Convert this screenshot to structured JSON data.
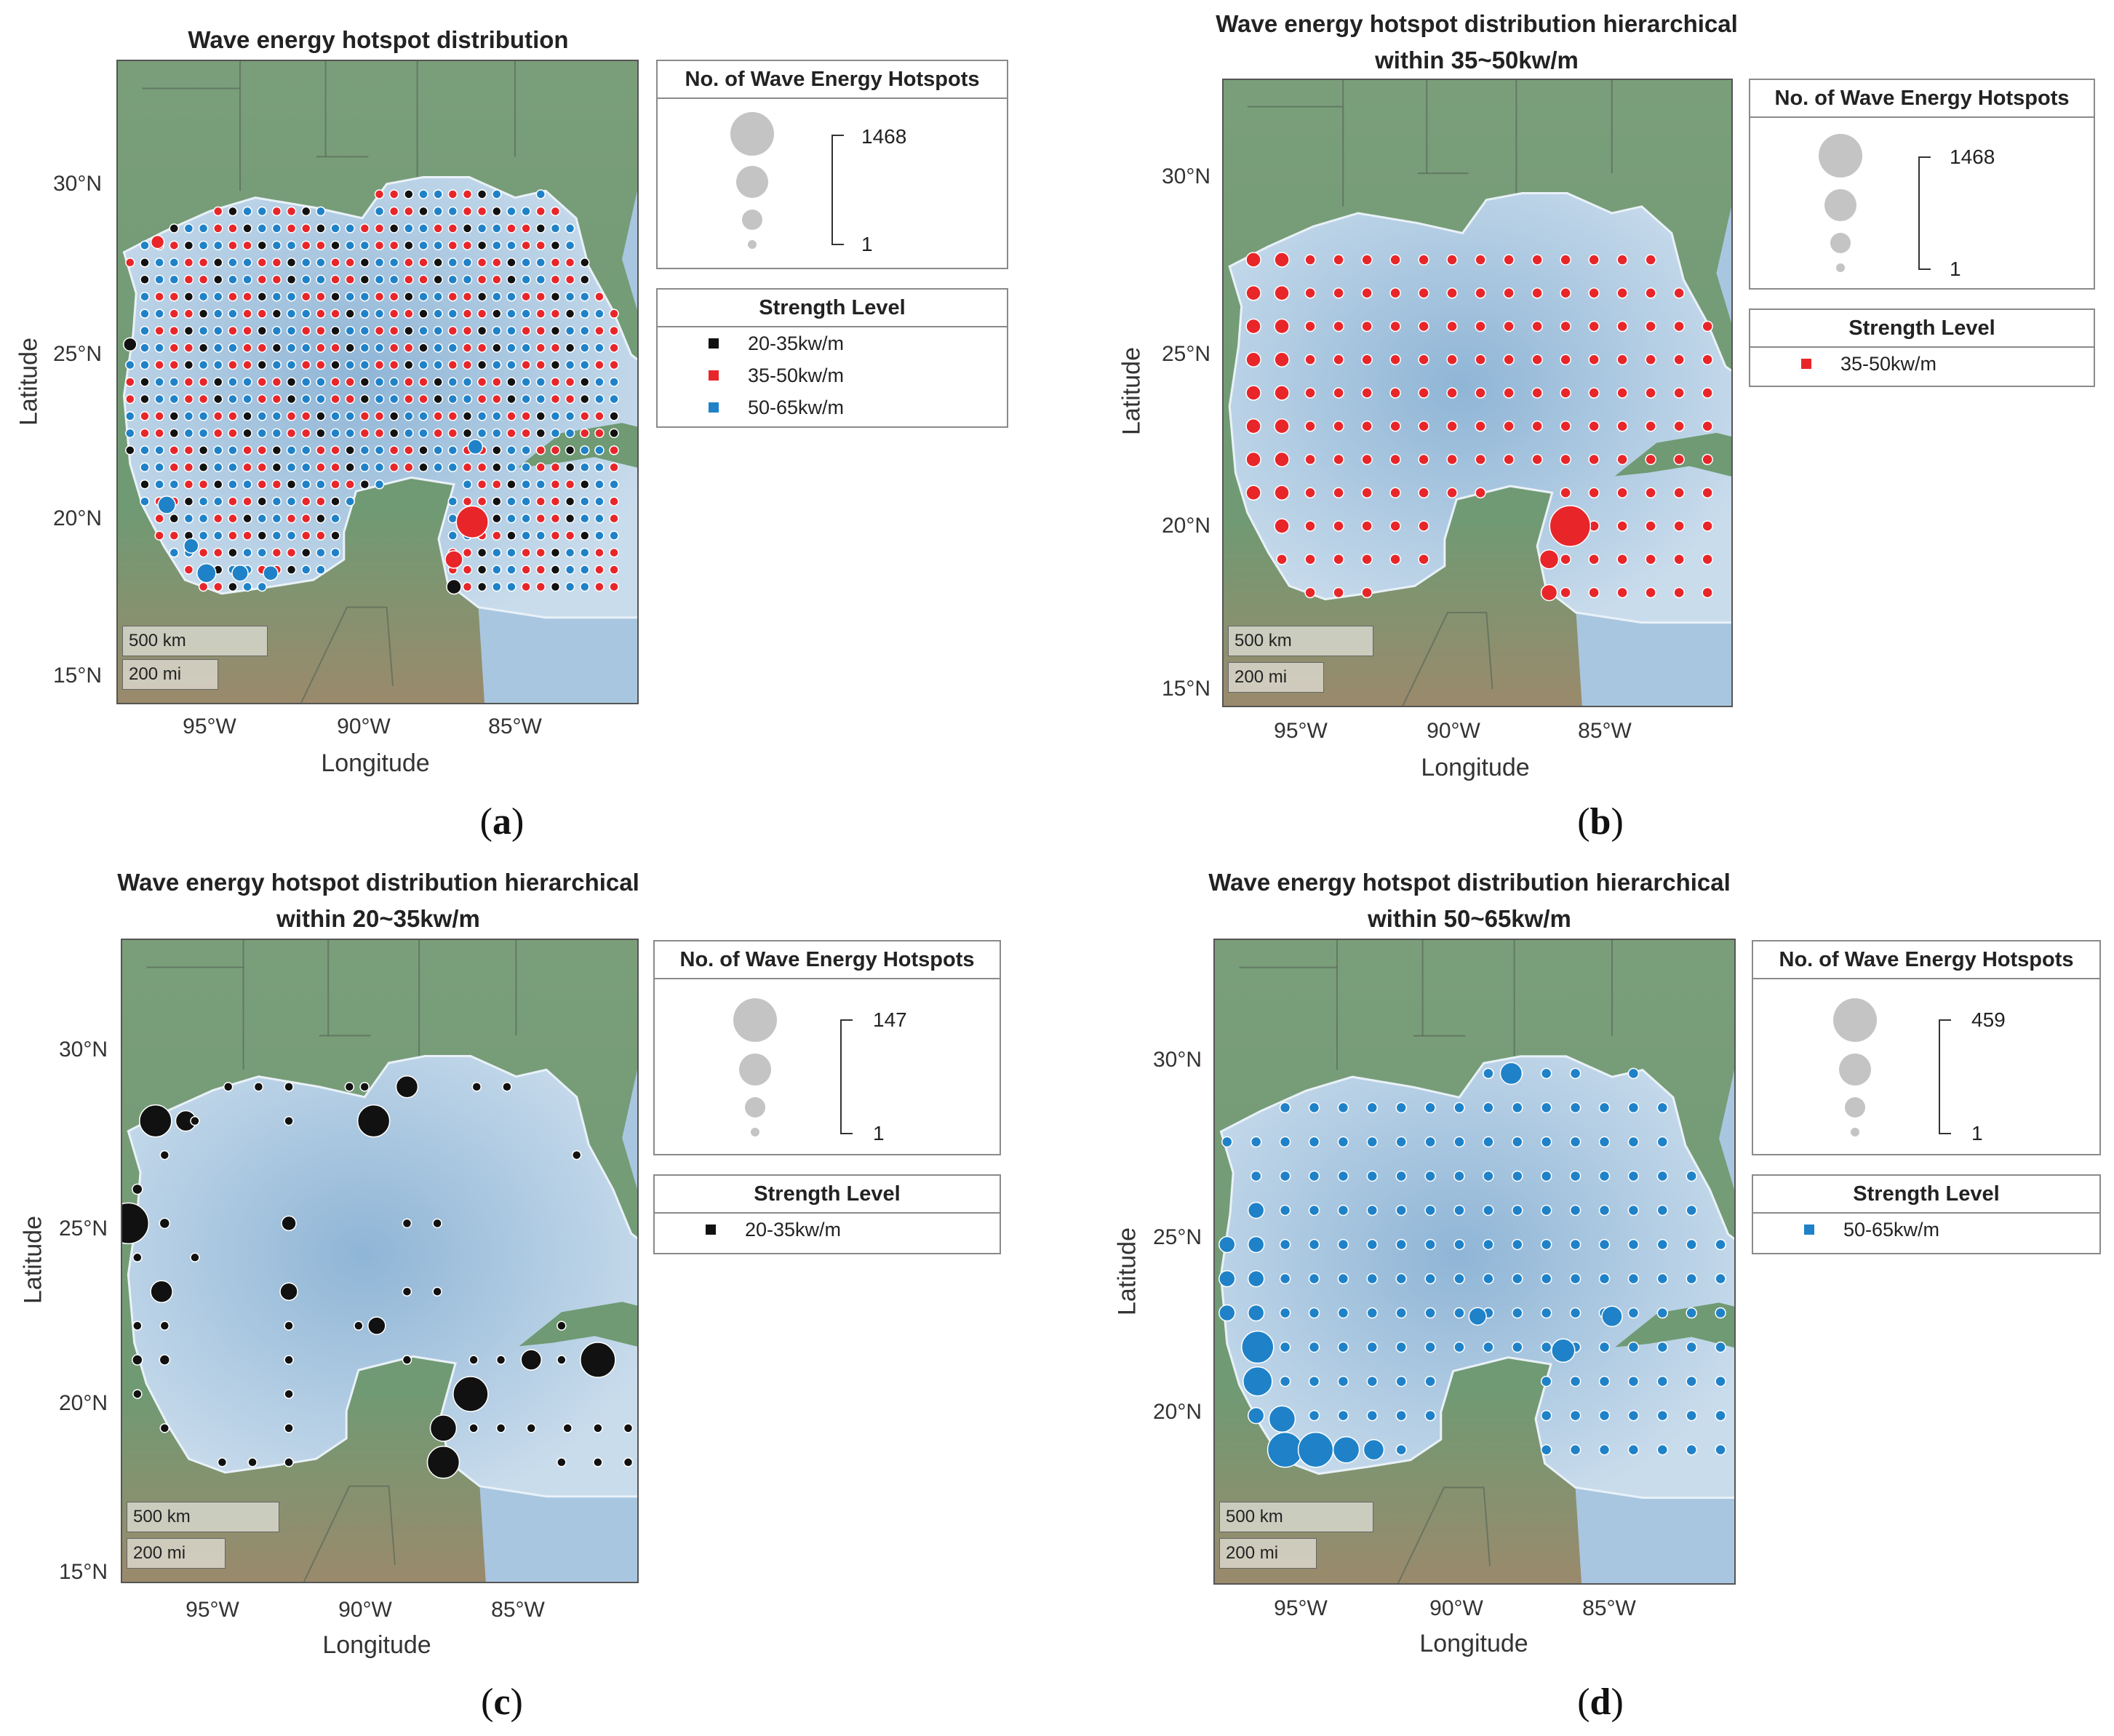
{
  "panels": [
    {
      "id": "a",
      "title_line1": "Wave energy hotspot distribution",
      "title_line2": "",
      "panel_label": "a",
      "size_legend": {
        "title": "No. of Wave Energy Hotspots",
        "max": "1468",
        "min": "1"
      },
      "strength_legend": {
        "title": "Strength Level",
        "items": [
          {
            "label": "20-35kw/m",
            "color": "#111111"
          },
          {
            "label": "35-50kw/m",
            "color": "#e8262a"
          },
          {
            "label": "50-65kw/m",
            "color": "#1f82c8"
          }
        ]
      },
      "lat_ticks": [
        "30°N",
        "25°N",
        "20°N",
        "15°N"
      ],
      "lon_ticks": [
        "95°W",
        "90°W",
        "85°W"
      ],
      "xlabel": "Longitude",
      "ylabel": "Latitude",
      "scale_km": "500 km",
      "scale_mi": "200 mi"
    },
    {
      "id": "b",
      "title_line1": "Wave energy hotspot distribution hierarchical",
      "title_line2": "within 35~50kw/m",
      "panel_label": "b",
      "size_legend": {
        "title": "No. of Wave Energy Hotspots",
        "max": "1468",
        "min": "1"
      },
      "strength_legend": {
        "title": "Strength Level",
        "items": [
          {
            "label": "35-50kw/m",
            "color": "#e8262a"
          }
        ]
      },
      "lat_ticks": [
        "30°N",
        "25°N",
        "20°N",
        "15°N"
      ],
      "lon_ticks": [
        "95°W",
        "90°W",
        "85°W"
      ],
      "xlabel": "Longitude",
      "ylabel": "Latitude",
      "scale_km": "500 km",
      "scale_mi": "200 mi"
    },
    {
      "id": "c",
      "title_line1": "Wave energy hotspot distribution hierarchical",
      "title_line2": "within 20~35kw/m",
      "panel_label": "c",
      "size_legend": {
        "title": "No. of Wave Energy Hotspots",
        "max": "147",
        "min": "1"
      },
      "strength_legend": {
        "title": "Strength Level",
        "items": [
          {
            "label": "20-35kw/m",
            "color": "#111111"
          }
        ]
      },
      "lat_ticks": [
        "30°N",
        "25°N",
        "20°N",
        "15°N"
      ],
      "lon_ticks": [
        "95°W",
        "90°W",
        "85°W"
      ],
      "xlabel": "Longitude",
      "ylabel": "Latitude",
      "scale_km": "500 km",
      "scale_mi": "200 mi"
    },
    {
      "id": "d",
      "title_line1": "Wave energy hotspot distribution hierarchical",
      "title_line2": "within 50~65kw/m",
      "panel_label": "d",
      "size_legend": {
        "title": "No. of Wave Energy Hotspots",
        "max": "459",
        "min": "1"
      },
      "strength_legend": {
        "title": "Strength Level",
        "items": [
          {
            "label": "50-65kw/m",
            "color": "#1f82c8"
          }
        ]
      },
      "lat_ticks": [
        "30°N",
        "25°N",
        "20°N",
        "15°N"
      ],
      "lon_ticks": [
        "95°W",
        "90°W",
        "85°W"
      ],
      "xlabel": "Longitude",
      "ylabel": "Latitude",
      "scale_km": "500 km",
      "scale_mi": "200 mi"
    }
  ],
  "colors": {
    "land": "#6f9a73",
    "sea": "#c9dcec",
    "sea_deep": "#8fb5d6",
    "strong20": "#111111",
    "strong35": "#e8262a",
    "strong50": "#1f82c8",
    "size_circle": "#c4c4c4"
  }
}
